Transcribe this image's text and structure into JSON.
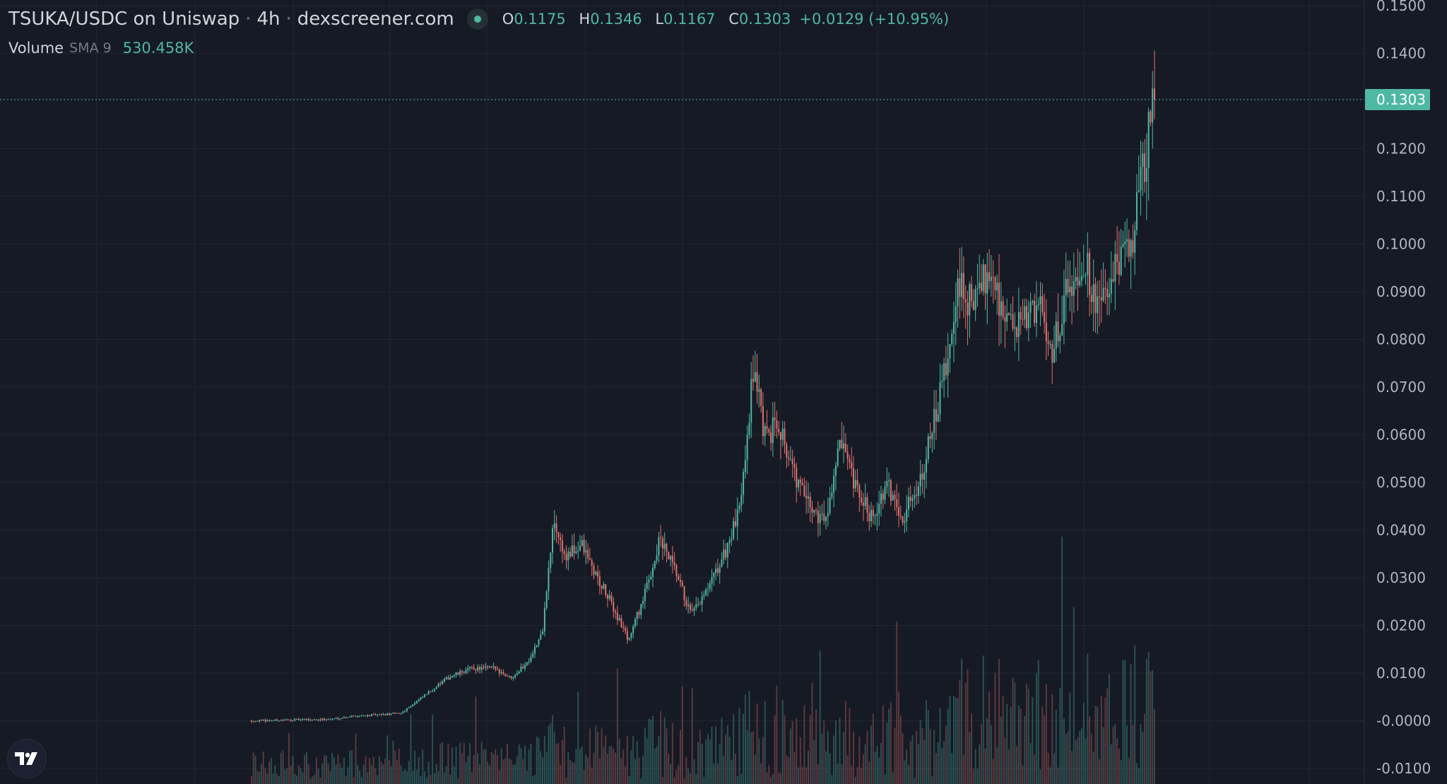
{
  "header": {
    "pair": "TSUKA/USDC on Uniswap",
    "interval": "4h",
    "source": "dexscreener.com",
    "open_key": "O",
    "open": "0.1175",
    "high_key": "H",
    "high": "0.1346",
    "low_key": "L",
    "low": "0.1167",
    "close_key": "C",
    "close": "0.1303",
    "change": "+0.0129 (+10.95%)"
  },
  "volume_legend": {
    "label": "Volume",
    "sma": "SMA 9",
    "value": "530.458K"
  },
  "colors": {
    "background": "#161a25",
    "grid": "#232733",
    "axis_text": "#b2b5be",
    "up": "#4fb8a4",
    "down": "#e0716b",
    "price_line": "#4fb8a4"
  },
  "chart_data": {
    "type": "candlestick",
    "title": "TSUKA/USDC on Uniswap",
    "interval": "4h",
    "ylim": [
      -0.01,
      0.15
    ],
    "y_ticks": [
      "0.1500",
      "0.1400",
      "0.1303",
      "0.1200",
      "0.1100",
      "0.1000",
      "0.0900",
      "0.0800",
      "0.0700",
      "0.0600",
      "0.0500",
      "0.0400",
      "0.0300",
      "0.0200",
      "0.0100",
      "-0.0000",
      "-0.0100"
    ],
    "y_tick_values": [
      0.15,
      0.14,
      0.1303,
      0.12,
      0.11,
      0.1,
      0.09,
      0.08,
      0.07,
      0.06,
      0.05,
      0.04,
      0.03,
      0.02,
      0.01,
      0.0,
      -0.01
    ],
    "last_price": 0.1303,
    "last_price_label": "0.1303",
    "grid": true,
    "price_path_approx": [
      [
        0.0,
        0.0
      ],
      [
        0.06,
        0.0002
      ],
      [
        0.1,
        0.0003
      ],
      [
        0.13,
        0.001
      ],
      [
        0.16,
        0.0012
      ],
      [
        0.19,
        0.0016
      ],
      [
        0.21,
        0.004
      ],
      [
        0.25,
        0.009
      ],
      [
        0.28,
        0.011
      ],
      [
        0.31,
        0.011
      ],
      [
        0.33,
        0.009
      ],
      [
        0.35,
        0.012
      ],
      [
        0.37,
        0.018
      ],
      [
        0.385,
        0.042
      ],
      [
        0.4,
        0.034
      ],
      [
        0.42,
        0.037
      ],
      [
        0.44,
        0.03
      ],
      [
        0.46,
        0.024
      ],
      [
        0.48,
        0.017
      ],
      [
        0.5,
        0.026
      ],
      [
        0.52,
        0.038
      ],
      [
        0.54,
        0.031
      ],
      [
        0.56,
        0.022
      ],
      [
        0.58,
        0.027
      ],
      [
        0.6,
        0.034
      ],
      [
        0.62,
        0.043
      ],
      [
        0.64,
        0.075
      ],
      [
        0.655,
        0.058
      ],
      [
        0.67,
        0.064
      ],
      [
        0.69,
        0.052
      ],
      [
        0.71,
        0.045
      ],
      [
        0.73,
        0.042
      ],
      [
        0.75,
        0.058
      ],
      [
        0.77,
        0.048
      ],
      [
        0.79,
        0.043
      ],
      [
        0.81,
        0.049
      ],
      [
        0.83,
        0.043
      ],
      [
        0.85,
        0.05
      ],
      [
        0.87,
        0.063
      ],
      [
        0.89,
        0.078
      ],
      [
        0.9,
        0.091
      ],
      [
        0.92,
        0.087
      ],
      [
        0.94,
        0.096
      ],
      [
        0.96,
        0.084
      ],
      [
        0.98,
        0.082
      ],
      [
        1.0,
        0.088
      ],
      [
        1.02,
        0.078
      ],
      [
        1.04,
        0.091
      ],
      [
        1.06,
        0.097
      ],
      [
        1.08,
        0.086
      ],
      [
        1.1,
        0.094
      ],
      [
        1.12,
        0.1
      ],
      [
        1.135,
        0.115
      ],
      [
        1.15,
        0.1303
      ]
    ],
    "volume_sma_9": "530.458K"
  }
}
